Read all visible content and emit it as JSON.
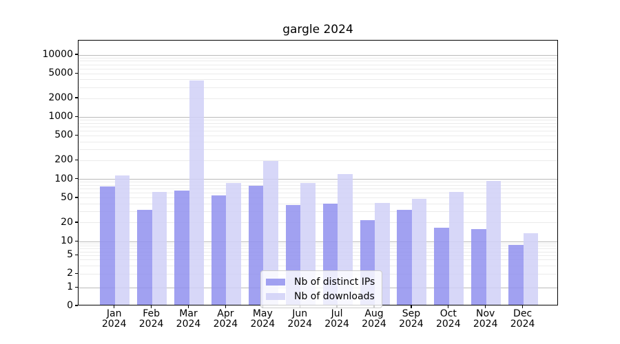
{
  "chart_data": {
    "type": "bar",
    "title": "gargle 2024",
    "categories": [
      {
        "month": "Jan",
        "year": "2024"
      },
      {
        "month": "Feb",
        "year": "2024"
      },
      {
        "month": "Mar",
        "year": "2024"
      },
      {
        "month": "Apr",
        "year": "2024"
      },
      {
        "month": "May",
        "year": "2024"
      },
      {
        "month": "Jun",
        "year": "2024"
      },
      {
        "month": "Jul",
        "year": "2024"
      },
      {
        "month": "Aug",
        "year": "2024"
      },
      {
        "month": "Sep",
        "year": "2024"
      },
      {
        "month": "Oct",
        "year": "2024"
      },
      {
        "month": "Nov",
        "year": "2024"
      },
      {
        "month": "Dec",
        "year": "2024"
      }
    ],
    "series": [
      {
        "name": "Nb of distinct IPs",
        "color": "#9090ee",
        "values": [
          73,
          31,
          62,
          52,
          75,
          37,
          39,
          21,
          31,
          16,
          15,
          8
        ]
      },
      {
        "name": "Nb of downloads",
        "color": "#d0d0f7",
        "values": [
          110,
          59,
          3700,
          82,
          185,
          83,
          115,
          40,
          46,
          59,
          90,
          13
        ]
      }
    ],
    "y_axis": {
      "scale": "log-with-zero",
      "tick_labels": [
        "0",
        "1",
        "2",
        "5",
        "10",
        "20",
        "50",
        "100",
        "200",
        "500",
        "1000",
        "2000",
        "5000",
        "10000"
      ],
      "tick_values": [
        0,
        1,
        2,
        5,
        10,
        20,
        50,
        100,
        200,
        500,
        1000,
        2000,
        5000,
        10000
      ],
      "range": [
        0,
        17000
      ]
    },
    "xlabel": "",
    "ylabel": "",
    "grid": "horizontal major and minor",
    "legend_position": "lower center",
    "colors": {
      "major_gridline": "#b9b9b9",
      "minor_gridline": "#ebebeb",
      "axis": "#000000",
      "background": "#ffffff"
    }
  }
}
